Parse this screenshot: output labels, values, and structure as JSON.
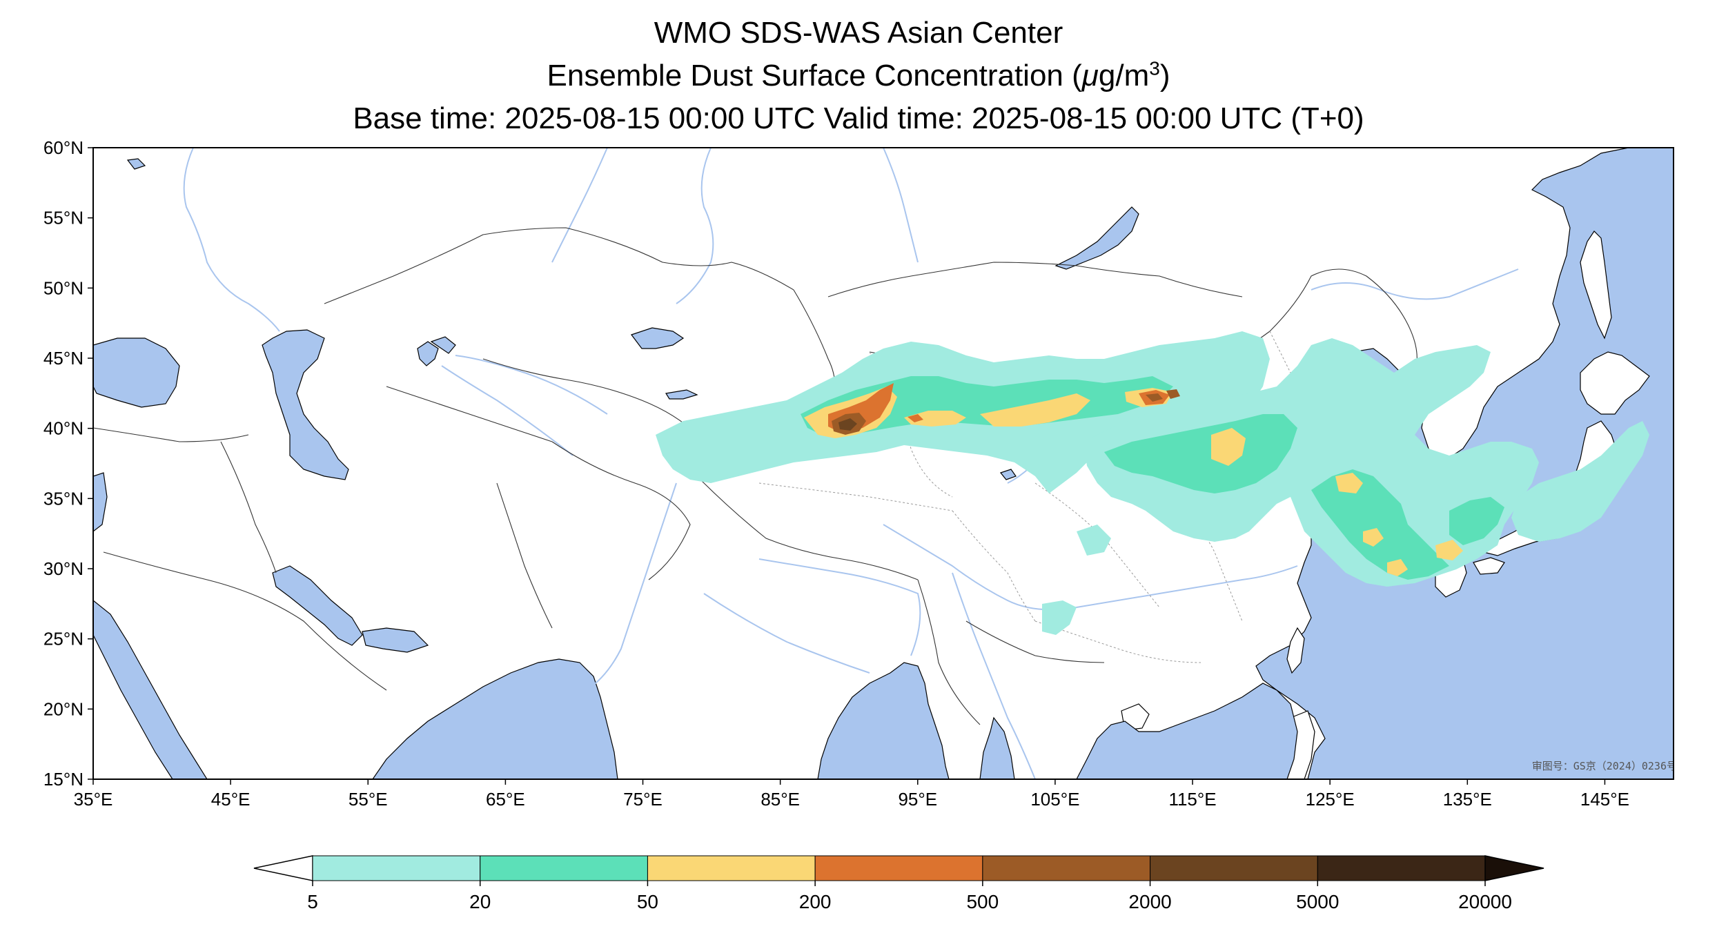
{
  "title": {
    "line1": "WMO SDS-WAS Asian Center",
    "line2_prefix": "Ensemble Dust Surface Concentration (",
    "line2_mu": "μ",
    "line2_unit": "g/m",
    "line2_exp": "3",
    "line2_suffix": ")",
    "line3": "Base time: 2025-08-15 00:00 UTC Valid time: 2025-08-15 00:00 UTC (T+0)"
  },
  "map": {
    "lon_range": [
      35,
      150
    ],
    "lat_range": [
      15,
      60
    ],
    "lon_ticks": [
      "35°E",
      "45°E",
      "55°E",
      "65°E",
      "75°E",
      "85°E",
      "95°E",
      "105°E",
      "115°E",
      "125°E",
      "135°E",
      "145°E"
    ],
    "lat_ticks": [
      "15°N",
      "20°N",
      "25°N",
      "30°N",
      "35°N",
      "40°N",
      "45°N",
      "50°N",
      "55°N",
      "60°N"
    ],
    "watermark": "审图号：GS京（2024）0236号",
    "ocean_color": "#a9c5ee",
    "land_color": "#ffffff"
  },
  "colorbar": {
    "labels": [
      "5",
      "20",
      "50",
      "200",
      "500",
      "2000",
      "5000",
      "20000"
    ],
    "colors": [
      "#a1ebe0",
      "#5ce0b8",
      "#fad775",
      "#dc732f",
      "#9c5b26",
      "#6b4420",
      "#3b2616"
    ],
    "under_color": "#ffffff",
    "over_color": "#1a0f08"
  }
}
